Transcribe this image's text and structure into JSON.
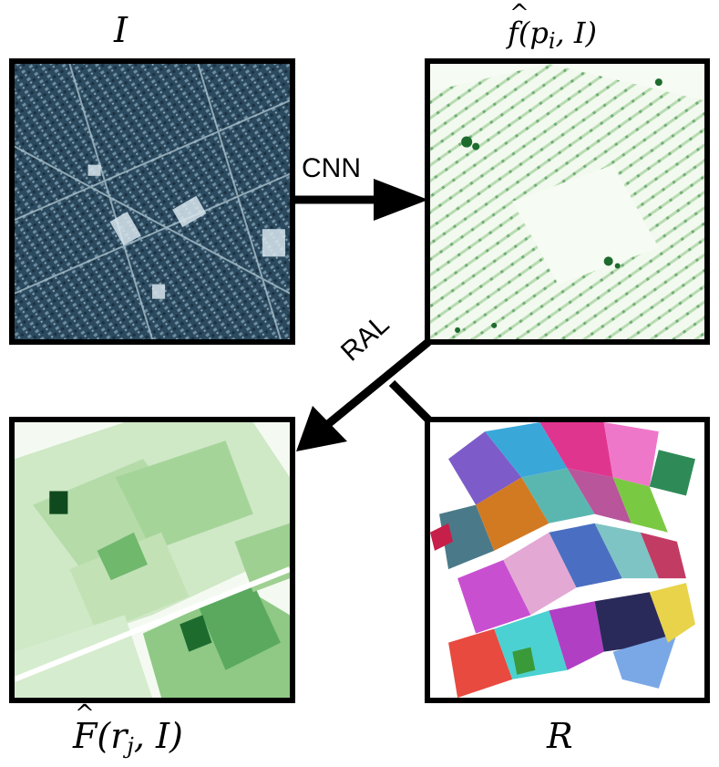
{
  "labels": {
    "input_image": "I",
    "pixel_score": {
      "base": "f",
      "args": "(p",
      "sub": "i",
      "tail": ", I)"
    },
    "region_score": {
      "base": "F",
      "args": "(r",
      "sub": "j",
      "tail": ", I)"
    },
    "regions": "R",
    "cnn_arrow": "CNN",
    "ral_arrow": "RAL"
  },
  "colors": {
    "border": "#000000",
    "arrow": "#000000",
    "aerial_base": "#2d4a5e",
    "green_light": "#e8f4e2",
    "green_dark": "#0f4a1e"
  },
  "icons": {
    "aerial": "aerial-image",
    "pixel_map": "green-heatmap",
    "region_map": "green-region-map",
    "segmentation": "color-segment-map"
  }
}
